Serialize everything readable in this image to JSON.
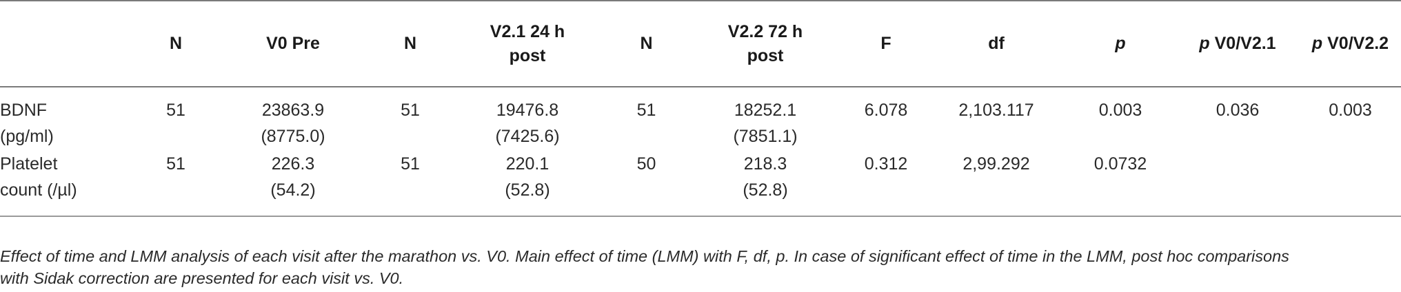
{
  "table": {
    "headers": [
      {
        "text": "",
        "line2": ""
      },
      {
        "text": "N",
        "line2": ""
      },
      {
        "text": "V0 Pre",
        "line2": ""
      },
      {
        "text": "N",
        "line2": ""
      },
      {
        "text": "V2.1 24 h",
        "line2": "post"
      },
      {
        "text": "N",
        "line2": ""
      },
      {
        "text": "V2.2 72 h",
        "line2": "post"
      },
      {
        "text": "F",
        "line2": ""
      },
      {
        "text": "df",
        "line2": ""
      },
      {
        "text": "p",
        "line2": ""
      },
      {
        "p_prefix": "p",
        "text": " V0/V2.1"
      },
      {
        "p_prefix": "p",
        "text": " V0/V2.2"
      }
    ],
    "rows": [
      {
        "label_line1": "BDNF",
        "label_line2": "(pg/ml)",
        "n1": "51",
        "v0_mean": "23863.9",
        "v0_sd": "(8775.0)",
        "n2": "51",
        "v21_mean": "19476.8",
        "v21_sd": "(7425.6)",
        "n3": "51",
        "v22_mean": "18252.1",
        "v22_sd": "(7851.1)",
        "f": "6.078",
        "df": "2,103.117",
        "p": "0.003",
        "p_v0_v21": "0.036",
        "p_v0_v22": "0.003"
      },
      {
        "label_line1": "Platelet",
        "label_line2": "count (/µl)",
        "n1": "51",
        "v0_mean": "226.3",
        "v0_sd": "(54.2)",
        "n2": "51",
        "v21_mean": "220.1",
        "v21_sd": "(52.8)",
        "n3": "50",
        "v22_mean": "218.3",
        "v22_sd": "(52.8)",
        "f": "0.312",
        "df": "2,99.292",
        "p": "0.0732",
        "p_v0_v21": "",
        "p_v0_v22": ""
      }
    ]
  },
  "footnote": {
    "line1": "Effect of time and LMM analysis of each visit after the marathon vs. V0. Main effect of time (LMM) with F, df, p. In case of significant effect of time in the LMM, post hoc comparisons",
    "line2": "with Sidak correction are presented for each visit vs. V0."
  }
}
